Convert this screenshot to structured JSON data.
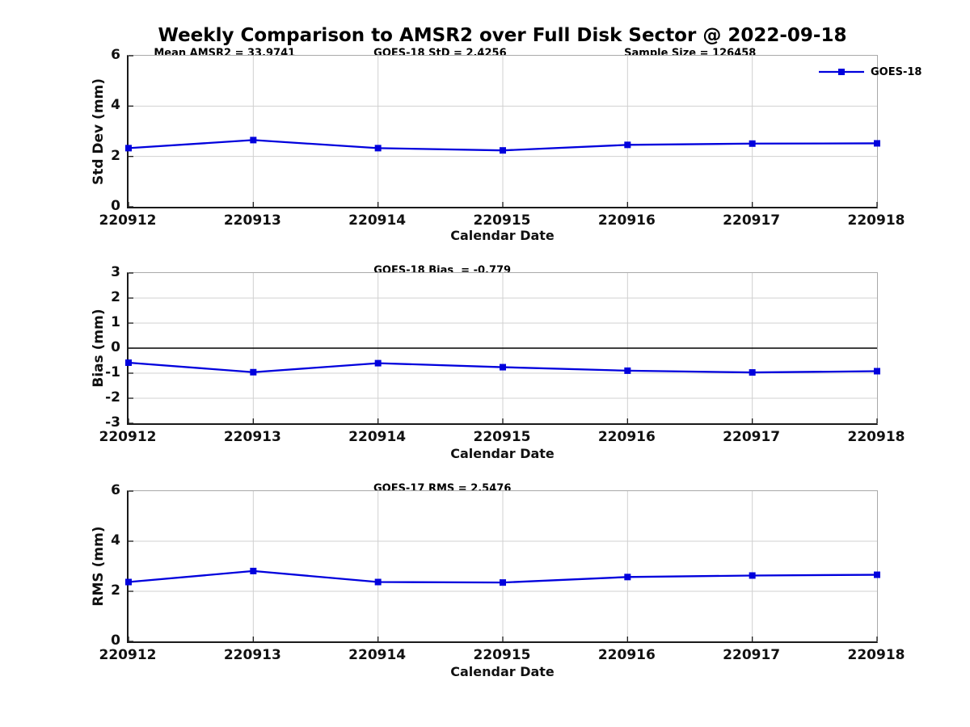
{
  "title": "Weekly Comparison to AMSR2 over Full Disk Sector @ 2022-09-18",
  "legend": {
    "label": "GOES-18"
  },
  "colors": {
    "line": "#0000dd",
    "marker": "#0000dd",
    "grid": "#d0d0d0",
    "axis": "#1a1a1a",
    "zero_line": "#000000"
  },
  "xlabel": "Calendar Date",
  "chart_data": [
    {
      "type": "line",
      "categories": [
        "220912",
        "220913",
        "220914",
        "220915",
        "220916",
        "220917",
        "220918"
      ],
      "series": [
        {
          "name": "GOES-18",
          "values": [
            2.33,
            2.65,
            2.33,
            2.24,
            2.46,
            2.51,
            2.52
          ]
        }
      ],
      "annotations": [
        "Mean AMSR2 = 33.9741",
        "GOES-18 StD = 2.4256",
        "Sample Size = 126458"
      ],
      "xlabel": "Calendar Date",
      "ylabel": "Std Dev (mm)",
      "ylim": [
        0,
        6
      ],
      "yticks": [
        6,
        4,
        2,
        0
      ],
      "grid": true,
      "zero_line": false,
      "legend": "GOES-18",
      "legend_position": "top-right-outside"
    },
    {
      "type": "line",
      "categories": [
        "220912",
        "220913",
        "220914",
        "220915",
        "220916",
        "220917",
        "220918"
      ],
      "series": [
        {
          "name": "GOES-18",
          "values": [
            -0.58,
            -0.96,
            -0.6,
            -0.76,
            -0.9,
            -0.97,
            -0.92
          ]
        }
      ],
      "annotations": [
        "GOES-18 Bias  = -0.779"
      ],
      "xlabel": "Calendar Date",
      "ylabel": "Bias (mm)",
      "ylim": [
        -3,
        3
      ],
      "yticks": [
        3,
        2,
        1,
        0,
        -1,
        -2,
        -3
      ],
      "grid": true,
      "zero_line": true
    },
    {
      "type": "line",
      "categories": [
        "220912",
        "220913",
        "220914",
        "220915",
        "220916",
        "220917",
        "220918"
      ],
      "series": [
        {
          "name": "GOES-18",
          "values": [
            2.37,
            2.81,
            2.37,
            2.35,
            2.57,
            2.63,
            2.66
          ]
        }
      ],
      "annotations": [
        "GOES-17 RMS = 2.5476"
      ],
      "xlabel": "Calendar Date",
      "ylabel": "RMS (mm)",
      "ylim": [
        0,
        6
      ],
      "yticks": [
        6,
        4,
        2,
        0
      ],
      "grid": true,
      "zero_line": false
    }
  ]
}
